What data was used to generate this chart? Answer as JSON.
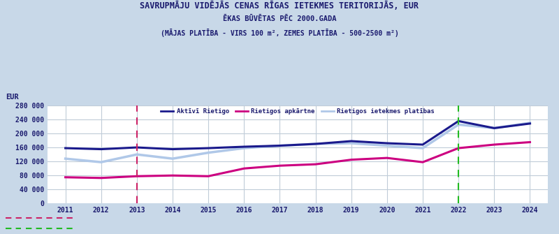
{
  "title_line1": "SAVRUPMĀJU VIDĒJĀS CENAS RĪGAS IETEKMES TERITORIJĀS, EUR",
  "title_line2": "ĒKAS BŪVĒTAS PĒC 2000.GADA",
  "title_line3": "(MĀJAS PLATĪBA - VIRS 100 m², ZEMES PLATĪBA - 500-2500 m²)",
  "ylabel": "EUR",
  "years": [
    2011,
    2012,
    2013,
    2014,
    2015,
    2016,
    2017,
    2018,
    2019,
    2020,
    2021,
    2022,
    2023,
    2024
  ],
  "aktivi": [
    158000,
    155000,
    160000,
    155000,
    158000,
    162000,
    165000,
    170000,
    178000,
    172000,
    168000,
    235000,
    215000,
    228000
  ],
  "apkartne": [
    75000,
    73000,
    78000,
    80000,
    78000,
    100000,
    108000,
    112000,
    125000,
    130000,
    118000,
    158000,
    168000,
    175000
  ],
  "ietekmes": [
    128000,
    118000,
    140000,
    128000,
    145000,
    158000,
    165000,
    170000,
    172000,
    165000,
    158000,
    225000,
    215000,
    230000
  ],
  "color_aktivi": "#1a1a8c",
  "color_apkartne": "#cc0080",
  "color_ietekmes": "#b0c8e8",
  "vline_2013": 2013.0,
  "vline_2022": 2022.0,
  "vline_2013_color": "#cc2266",
  "vline_2022_color": "#22bb22",
  "ylim": [
    0,
    280000
  ],
  "yticks": [
    0,
    40000,
    80000,
    120000,
    160000,
    200000,
    240000,
    280000
  ],
  "bg_outer": "#c8d8e8",
  "bg_plot": "#ffffff",
  "grid_color": "#c0ccd8",
  "legend_aktivi": "Aktīvī Rietigo",
  "legend_apkartne": "Rietigos apkārtne",
  "legend_ietekmes": "Rietigos ietekmes platības",
  "title_color": "#1a1a6e",
  "tick_color": "#1a1a6e",
  "bottom_label1": "─────────────",
  "bottom_label2": "─────────────"
}
